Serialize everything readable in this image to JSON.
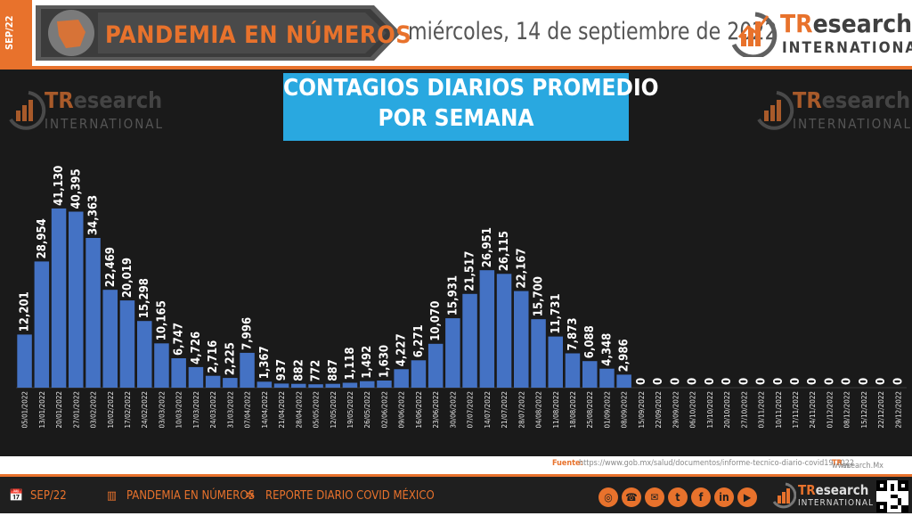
{
  "header": {
    "tab_label": "SEP/22",
    "banner_title": "PANDEMIA EN NÚMEROS",
    "date": "miércoles, 14 de septiembre de 2022",
    "logo_main_prefix": "TR",
    "logo_main_suffix": "esearch",
    "logo_sub": "INTERNATIONAL"
  },
  "source": {
    "label": "Fuente:",
    "url": "https://www.gob.mx/salud/documentos/informe-tecnico-diario-covid19-2022",
    "site_prefix": "www.",
    "site_brand": "TR",
    "site_suffix": "esearch.Mx"
  },
  "footer": {
    "item1": "SEP/22",
    "item2": "PANDEMIA EN NÚMEROS",
    "item3": "REPORTE DIARIO COVID MÉXICO",
    "logo_prefix": "TR",
    "logo_suffix": "esearch",
    "logo_sub": "INTERNATIONAL",
    "social_icons": [
      "globe-icon",
      "whatsapp-icon",
      "email-icon",
      "twitter-icon",
      "facebook-icon",
      "linkedin-icon",
      "youtube-icon"
    ]
  },
  "colors": {
    "accent": "#e8722c",
    "bar": "#4472c4",
    "title_bg": "#29a8e0",
    "panel_bg": "#1a1a1a"
  },
  "chart_data": {
    "type": "bar",
    "title_line1": "CONTAGIOS DIARIOS PROMEDIO",
    "title_line2": "POR SEMANA",
    "categories": [
      "05/01/2022",
      "13/01/2022",
      "20/01/2022",
      "27/01/2022",
      "03/02/2022",
      "10/02/2022",
      "17/02/2022",
      "24/02/2022",
      "03/03/2022",
      "10/03/2022",
      "17/03/2022",
      "24/03/2022",
      "31/03/2022",
      "07/04/2022",
      "14/04/2022",
      "21/04/2022",
      "28/04/2022",
      "05/05/2022",
      "12/05/2022",
      "19/05/2022",
      "26/05/2022",
      "02/06/2022",
      "09/06/2022",
      "16/06/2022",
      "23/06/2022",
      "30/06/2022",
      "07/07/2022",
      "14/07/2022",
      "21/07/2022",
      "28/07/2022",
      "04/08/2022",
      "11/08/2022",
      "18/08/2022",
      "25/08/2022",
      "01/09/2022",
      "08/09/2022",
      "15/09/2022",
      "22/09/2022",
      "29/09/2022",
      "06/10/2022",
      "13/10/2022",
      "20/10/2022",
      "27/10/2022",
      "03/11/2022",
      "10/11/2022",
      "17/11/2022",
      "24/11/2022",
      "01/12/2022",
      "08/12/2022",
      "15/12/2022",
      "22/12/2022",
      "29/12/2022"
    ],
    "values": [
      12201,
      28954,
      41130,
      40395,
      34363,
      22469,
      20019,
      15298,
      10165,
      6747,
      4726,
      2716,
      2225,
      7996,
      1367,
      937,
      882,
      772,
      887,
      1118,
      1492,
      1630,
      4227,
      6271,
      10070,
      15931,
      21517,
      26951,
      26115,
      22167,
      15700,
      11731,
      7873,
      6088,
      4348,
      2986,
      0,
      0,
      0,
      0,
      0,
      0,
      0,
      0,
      0,
      0,
      0,
      0,
      0,
      0,
      0,
      0
    ],
    "labels": [
      "12,201",
      "28,954",
      "41,130",
      "40,395",
      "34,363",
      "22,469",
      "20,019",
      "15,298",
      "10,165",
      "6,747",
      "4,726",
      "2,716",
      "2,225",
      "7,996",
      "1,367",
      "937",
      "882",
      "772",
      "887",
      "1,118",
      "1,492",
      "1,630",
      "4,227",
      "6,271",
      "10,070",
      "15,931",
      "21,517",
      "26,951",
      "26,115",
      "22,167",
      "15,700",
      "11,731",
      "7,873",
      "6,088",
      "4,348",
      "2,986",
      "0",
      "0",
      "0",
      "0",
      "0",
      "0",
      "0",
      "0",
      "0",
      "0",
      "0",
      "0",
      "0",
      "0",
      "0",
      "0"
    ],
    "ylim": [
      0,
      50000
    ],
    "grid": false,
    "legend": "none"
  }
}
